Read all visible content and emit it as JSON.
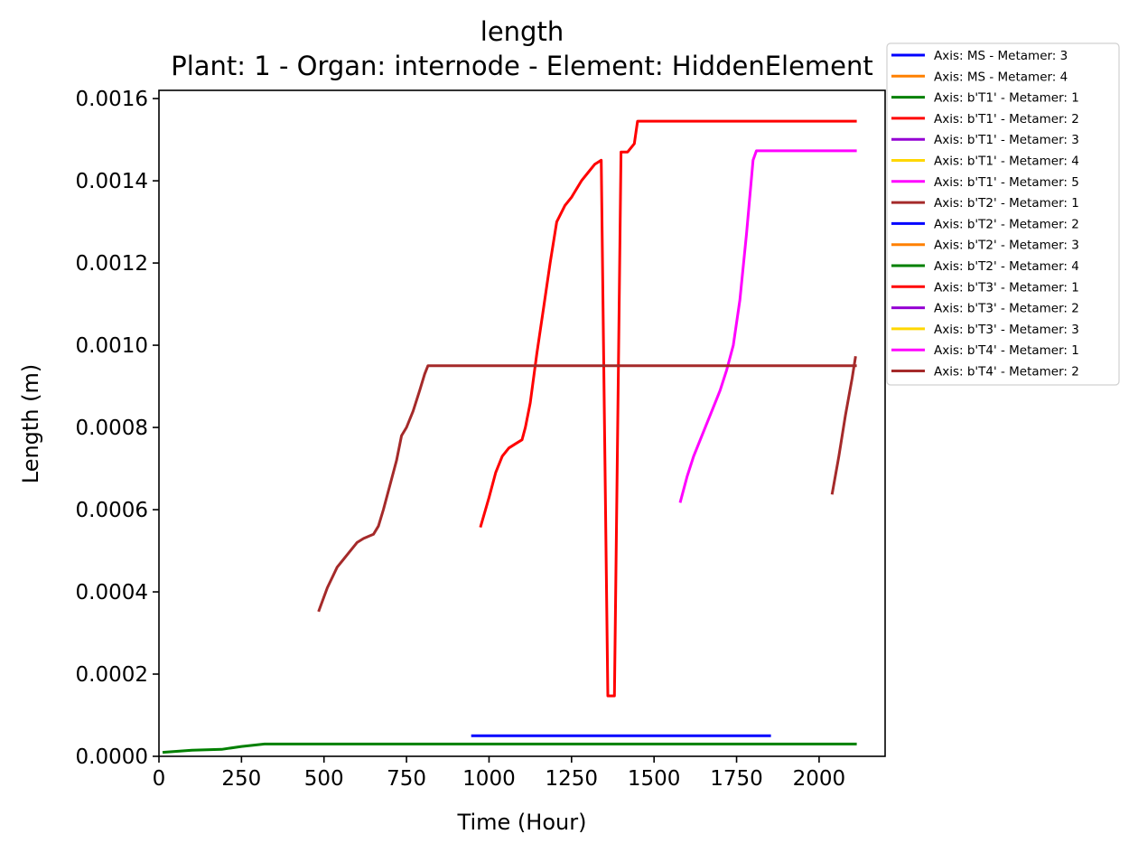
{
  "chart_data": {
    "type": "line",
    "title": "length",
    "subtitle": "Plant: 1 - Organ: internode - Element: HiddenElement",
    "xlabel": "Time (Hour)",
    "ylabel": "Length (m)",
    "xlim": [
      0,
      2200
    ],
    "ylim": [
      0,
      0.00162
    ],
    "xticks": [
      0,
      250,
      500,
      750,
      1000,
      1250,
      1500,
      1750,
      2000
    ],
    "xtick_labels": [
      "0",
      "250",
      "500",
      "750",
      "1000",
      "1250",
      "1500",
      "1750",
      "2000"
    ],
    "yticks": [
      0,
      0.0002,
      0.0004,
      0.0006,
      0.0008,
      0.001,
      0.0012,
      0.0014,
      0.0016
    ],
    "ytick_labels": [
      "0.0000",
      "0.0002",
      "0.0004",
      "0.0006",
      "0.0008",
      "0.0010",
      "0.0012",
      "0.0014",
      "0.0016"
    ],
    "legend_position": "outside-top-right",
    "series": [
      {
        "name": "Axis: MS - Metamer: 3",
        "color": "#0000ff",
        "x": [
          950,
          1850
        ],
        "y": [
          5e-05,
          5e-05
        ]
      },
      {
        "name": "Axis: MS - Metamer: 4",
        "color": "#ff8000",
        "x": [],
        "y": []
      },
      {
        "name": "Axis: b'T1' - Metamer: 1",
        "color": "#008000",
        "x": [
          15,
          100,
          190,
          250,
          320,
          500,
          1000,
          1500,
          1900,
          2110
        ],
        "y": [
          1e-05,
          1.5e-05,
          1.7e-05,
          2.4e-05,
          3e-05,
          3e-05,
          3e-05,
          3e-05,
          3e-05,
          3e-05
        ]
      },
      {
        "name": "Axis: b'T1' - Metamer: 2",
        "color": "#ff0000",
        "x": [
          975,
          1000,
          1020,
          1040,
          1060,
          1080,
          1100,
          1110,
          1125,
          1145,
          1165,
          1185,
          1205,
          1230,
          1250,
          1280,
          1300,
          1320,
          1340,
          1360,
          1380,
          1400,
          1420,
          1440,
          1450,
          1600,
          1800,
          2000,
          2110
        ],
        "y": [
          0.00056,
          0.00063,
          0.00069,
          0.00073,
          0.00075,
          0.00076,
          0.00077,
          0.0008,
          0.00086,
          0.00098,
          0.00109,
          0.0012,
          0.0013,
          0.00134,
          0.00136,
          0.0014,
          0.00142,
          0.00144,
          0.00145,
          0.000147,
          0.000147,
          0.00147,
          0.00147,
          0.00149,
          0.001545,
          0.001545,
          0.001545,
          0.001545,
          0.001545
        ]
      },
      {
        "name": "Axis: b'T1' - Metamer: 3",
        "color": "#9400d3",
        "x": [],
        "y": []
      },
      {
        "name": "Axis: b'T1' - Metamer: 4",
        "color": "#ffd700",
        "x": [],
        "y": []
      },
      {
        "name": "Axis: b'T1' - Metamer: 5",
        "color": "#ff00ff",
        "x": [
          1580,
          1600,
          1620,
          1650,
          1680,
          1700,
          1720,
          1740,
          1760,
          1780,
          1800,
          1810,
          1900,
          2000,
          2110
        ],
        "y": [
          0.00062,
          0.00068,
          0.00073,
          0.00079,
          0.00085,
          0.00089,
          0.00094,
          0.001,
          0.00111,
          0.00127,
          0.00145,
          0.001473,
          0.001473,
          0.001473,
          0.001473
        ]
      },
      {
        "name": "Axis: b'T2' - Metamer: 1",
        "color": "#a52a2a",
        "x": [
          485,
          510,
          540,
          570,
          600,
          620,
          650,
          665,
          680,
          700,
          720,
          735,
          750,
          770,
          790,
          805,
          815,
          1000,
          1500,
          2000,
          2110
        ],
        "y": [
          0.000355,
          0.00041,
          0.00046,
          0.00049,
          0.00052,
          0.00053,
          0.00054,
          0.00056,
          0.0006,
          0.00066,
          0.00072,
          0.00078,
          0.0008,
          0.00084,
          0.00089,
          0.00093,
          0.00095,
          0.00095,
          0.00095,
          0.00095,
          0.00095
        ]
      },
      {
        "name": "Axis: b'T2' - Metamer: 2",
        "color": "#0000ff",
        "x": [],
        "y": []
      },
      {
        "name": "Axis: b'T2' - Metamer: 3",
        "color": "#ff8000",
        "x": [],
        "y": []
      },
      {
        "name": "Axis: b'T2' - Metamer: 4",
        "color": "#008000",
        "x": [],
        "y": []
      },
      {
        "name": "Axis: b'T3' - Metamer: 1",
        "color": "#ff0000",
        "x": [],
        "y": []
      },
      {
        "name": "Axis: b'T3' - Metamer: 2",
        "color": "#9400d3",
        "x": [],
        "y": []
      },
      {
        "name": "Axis: b'T3' - Metamer: 3",
        "color": "#ffd700",
        "x": [],
        "y": []
      },
      {
        "name": "Axis: b'T4' - Metamer: 1",
        "color": "#ff00ff",
        "x": [],
        "y": []
      },
      {
        "name": "Axis: b'T4' - Metamer: 2",
        "color": "#a52a2a",
        "x": [
          2040,
          2060,
          2080,
          2100,
          2110
        ],
        "y": [
          0.00064,
          0.00073,
          0.00083,
          0.00092,
          0.00097
        ]
      }
    ]
  }
}
